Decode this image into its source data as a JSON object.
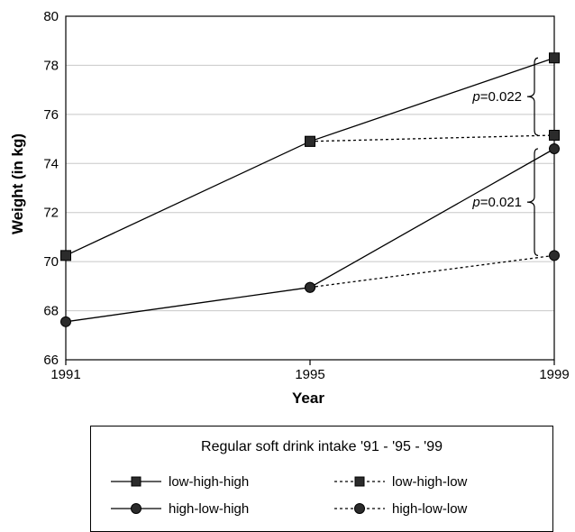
{
  "chart_data": {
    "type": "line",
    "title": "",
    "xlabel": "Year",
    "ylabel": "Weight (in kg)",
    "x": [
      1991,
      1995,
      1999
    ],
    "xticks": [
      "1991",
      "1995",
      "1999"
    ],
    "ylim": [
      66,
      80
    ],
    "yticks": [
      66,
      68,
      70,
      72,
      74,
      76,
      78,
      80
    ],
    "grid": "horizontal",
    "series": [
      {
        "name": "low-high-high",
        "style": "solid",
        "marker": "square",
        "values": [
          70.25,
          74.9,
          78.3
        ]
      },
      {
        "name": "low-high-low",
        "style": "dashed",
        "marker": "square",
        "values": [
          null,
          74.9,
          75.15
        ]
      },
      {
        "name": "high-low-high",
        "style": "solid",
        "marker": "circle",
        "values": [
          67.55,
          68.95,
          74.6
        ]
      },
      {
        "name": "high-low-low",
        "style": "dashed",
        "marker": "circle",
        "values": [
          null,
          68.95,
          70.25
        ]
      }
    ],
    "annotations": [
      {
        "prefix": "p",
        "text": "=0.022",
        "x": 1999,
        "y_range": [
          75.15,
          78.3
        ]
      },
      {
        "prefix": "p",
        "text": "=0.021",
        "x": 1999,
        "y_range": [
          70.25,
          74.6
        ]
      }
    ],
    "legend": {
      "title": "Regular soft drink intake '91 - '95 - '99",
      "position": "below"
    }
  }
}
